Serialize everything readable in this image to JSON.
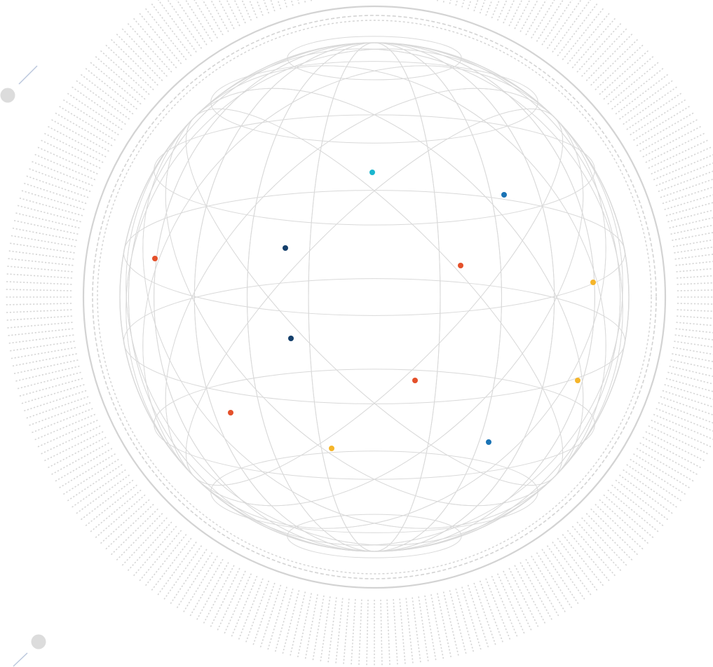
{
  "colors": {
    "background": "#ffffff",
    "grid_line": "#d9d9d9",
    "ring": "#d3d3d3",
    "tick": "#d6d6d6",
    "accent_line": "#b9c6dc",
    "bullet": "#dcdcdc"
  },
  "markers": [
    {
      "id": "cyan-1",
      "color": "#1ab6cf"
    },
    {
      "id": "blue-1",
      "color": "#1a73b5"
    },
    {
      "id": "navy-1",
      "color": "#143f6b"
    },
    {
      "id": "red-1",
      "color": "#e4502a"
    },
    {
      "id": "red-2",
      "color": "#e4502a"
    },
    {
      "id": "amber-1",
      "color": "#f5b52a"
    },
    {
      "id": "navy-2",
      "color": "#143f6b"
    },
    {
      "id": "red-3",
      "color": "#e4502a"
    },
    {
      "id": "amber-2",
      "color": "#f5b52a"
    },
    {
      "id": "red-4",
      "color": "#e4502a"
    },
    {
      "id": "amber-3",
      "color": "#f5b52a"
    },
    {
      "id": "blue-2",
      "color": "#1a73b5"
    }
  ],
  "decorations": {
    "ring_style": "dashed radial ticks around a wireframe globe",
    "bullets": 2
  }
}
